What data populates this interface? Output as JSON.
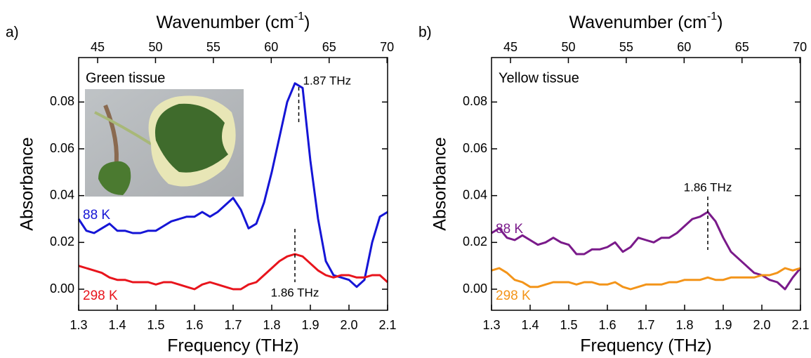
{
  "chart_data": [
    {
      "type": "line",
      "panel_label": "a)",
      "inset_label": "Green tissue",
      "xlabel": "Frequency (THz)",
      "ylabel": "Absorbance",
      "x2label": {
        "text": "Wavenumber (cm",
        "sup": "-1",
        "end": ")"
      },
      "x": [
        1.3,
        1.32,
        1.34,
        1.36,
        1.38,
        1.4,
        1.42,
        1.44,
        1.46,
        1.48,
        1.5,
        1.52,
        1.54,
        1.56,
        1.58,
        1.6,
        1.62,
        1.64,
        1.66,
        1.68,
        1.7,
        1.72,
        1.74,
        1.76,
        1.78,
        1.8,
        1.82,
        1.84,
        1.86,
        1.88,
        1.9,
        1.92,
        1.94,
        1.96,
        1.98,
        2.0,
        2.02,
        2.04,
        2.06,
        2.08,
        2.1
      ],
      "xlim": [
        1.3,
        2.1
      ],
      "xticks": [
        1.3,
        1.4,
        1.5,
        1.6,
        1.7,
        1.8,
        1.9,
        {
          "value": 2,
          "label": "2.0"
        },
        2.1
      ],
      "x2lim": [
        43.36,
        70.05
      ],
      "x2ticks": [
        45,
        50,
        55,
        60,
        65,
        70
      ],
      "ylim": [
        -0.009,
        0.099
      ],
      "yticks": [
        {
          "value": 0,
          "label": "0.00"
        },
        0.02,
        0.04,
        0.06,
        0.08
      ],
      "series": [
        {
          "name": "88 K",
          "color": "#1515d6",
          "values": [
            0.03,
            0.025,
            0.024,
            0.026,
            0.028,
            0.025,
            0.025,
            0.024,
            0.024,
            0.025,
            0.025,
            0.027,
            0.029,
            0.03,
            0.031,
            0.031,
            0.033,
            0.031,
            0.033,
            0.036,
            0.039,
            0.034,
            0.026,
            0.028,
            0.037,
            0.05,
            0.065,
            0.08,
            0.088,
            0.086,
            0.055,
            0.03,
            0.012,
            0.006,
            0.005,
            0.004,
            0.001,
            0.004,
            0.02,
            0.031,
            0.033
          ]
        },
        {
          "name": "298 K",
          "color": "#e8141c",
          "values": [
            0.01,
            0.009,
            0.008,
            0.007,
            0.005,
            0.004,
            0.004,
            0.003,
            0.003,
            0.003,
            0.002,
            0.003,
            0.003,
            0.002,
            0.001,
            0.0,
            0.002,
            0.003,
            0.002,
            0.001,
            0.0,
            0.0,
            0.002,
            0.003,
            0.006,
            0.009,
            0.012,
            0.014,
            0.015,
            0.014,
            0.011,
            0.008,
            0.006,
            0.005,
            0.006,
            0.006,
            0.005,
            0.005,
            0.006,
            0.006,
            0.003
          ]
        }
      ],
      "markers": [
        {
          "label": "1.87 THz",
          "x": 1.87
        },
        {
          "label": "1.86 THz",
          "x": 1.86
        }
      ]
    },
    {
      "type": "line",
      "panel_label": "b)",
      "inset_label": "Yellow tissue",
      "xlabel": "Frequency (THz)",
      "ylabel": "Absorbance",
      "x2label": {
        "text": "Wavenumber (cm",
        "sup": "-1",
        "end": ")"
      },
      "x": [
        1.3,
        1.32,
        1.34,
        1.36,
        1.38,
        1.4,
        1.42,
        1.44,
        1.46,
        1.48,
        1.5,
        1.52,
        1.54,
        1.56,
        1.58,
        1.6,
        1.62,
        1.64,
        1.66,
        1.68,
        1.7,
        1.72,
        1.74,
        1.76,
        1.78,
        1.8,
        1.82,
        1.84,
        1.86,
        1.88,
        1.9,
        1.92,
        1.94,
        1.96,
        1.98,
        2.0,
        2.02,
        2.04,
        2.06,
        2.08,
        2.1
      ],
      "xlim": [
        1.3,
        2.1
      ],
      "xticks": [
        1.3,
        1.4,
        1.5,
        1.6,
        1.7,
        1.8,
        1.9,
        {
          "value": 2,
          "label": "2.0"
        },
        2.1
      ],
      "x2lim": [
        43.36,
        70.05
      ],
      "x2ticks": [
        45,
        50,
        55,
        60,
        65,
        70
      ],
      "ylim": [
        -0.009,
        0.099
      ],
      "yticks": [
        {
          "value": 0,
          "label": "0.00"
        },
        0.02,
        0.04,
        0.06,
        0.08
      ],
      "series": [
        {
          "name": "88 K",
          "color": "#7a1a8a",
          "values": [
            0.024,
            0.026,
            0.022,
            0.021,
            0.023,
            0.021,
            0.019,
            0.02,
            0.022,
            0.02,
            0.019,
            0.015,
            0.015,
            0.017,
            0.017,
            0.018,
            0.02,
            0.016,
            0.018,
            0.022,
            0.021,
            0.02,
            0.022,
            0.022,
            0.024,
            0.027,
            0.03,
            0.031,
            0.033,
            0.029,
            0.022,
            0.016,
            0.013,
            0.01,
            0.007,
            0.006,
            0.004,
            0.003,
            0.0,
            0.005,
            0.009
          ]
        },
        {
          "name": "298 K",
          "color": "#f39419",
          "values": [
            0.008,
            0.009,
            0.007,
            0.004,
            0.003,
            0.001,
            0.001,
            0.002,
            0.003,
            0.003,
            0.003,
            0.002,
            0.003,
            0.003,
            0.002,
            0.002,
            0.003,
            0.001,
            0.0,
            0.001,
            0.002,
            0.002,
            0.002,
            0.003,
            0.003,
            0.004,
            0.004,
            0.004,
            0.005,
            0.004,
            0.004,
            0.005,
            0.005,
            0.005,
            0.005,
            0.006,
            0.006,
            0.007,
            0.009,
            0.008,
            0.009
          ]
        }
      ],
      "markers": [
        {
          "label": "1.86 THz",
          "x": 1.86
        }
      ]
    }
  ]
}
